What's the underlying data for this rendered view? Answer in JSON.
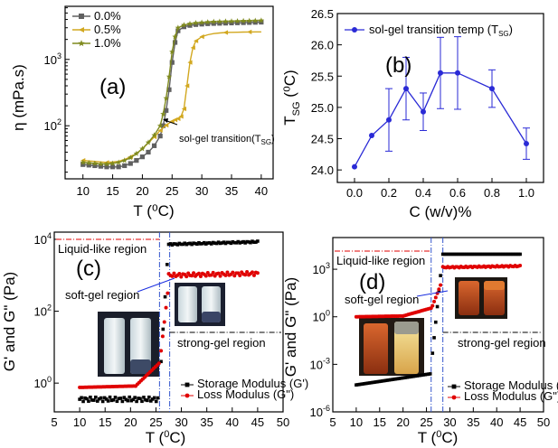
{
  "chart_data": [
    {
      "id": "a",
      "type": "line",
      "panel_label": "(a)",
      "xlabel": "T (⁰C)",
      "ylabel": "η (mPa.s)",
      "xlim": [
        7,
        42
      ],
      "ylim_log10": [
        1.2,
        3.8
      ],
      "yscale": "log",
      "x_ticks": [
        "10",
        "15",
        "20",
        "25",
        "30",
        "35",
        "40"
      ],
      "y_ticks": [
        {
          "base": "10",
          "exp": "2",
          "log": 2
        },
        {
          "base": "10",
          "exp": "3",
          "log": 3
        }
      ],
      "legend_placement": "top-left",
      "annotation": {
        "text": "sol-gel transition(T",
        "sub": "SG",
        "close": ")",
        "x": 28.8,
        "y": 93
      },
      "series": [
        {
          "name": "0.0%",
          "color": "#606060",
          "marker": "square",
          "x": [
            10,
            11,
            12,
            13,
            14,
            15,
            16,
            17,
            18,
            19,
            20,
            21,
            22,
            23,
            23.5,
            24,
            24.5,
            25,
            25.5,
            26,
            27,
            28,
            29,
            30,
            31,
            32,
            33,
            34,
            35,
            36,
            37,
            38,
            39,
            40
          ],
          "y": [
            26,
            25.5,
            25,
            24.5,
            24,
            24,
            24,
            25,
            27,
            30,
            34,
            40,
            50,
            70,
            100,
            170,
            350,
            900,
            1800,
            2700,
            3100,
            3250,
            3350,
            3400,
            3450,
            3480,
            3500,
            3520,
            3540,
            3560,
            3580,
            3600,
            3620,
            3640
          ]
        },
        {
          "name": "0.5%",
          "color": "#d2a820",
          "marker": "triangle-left",
          "x": [
            10,
            11,
            12,
            13,
            14,
            15,
            16,
            17,
            18,
            19,
            20,
            21,
            22,
            23,
            24,
            25,
            25.5,
            26,
            26.5,
            27,
            27.5,
            28,
            28.5,
            29,
            30,
            31,
            32,
            33,
            34,
            35,
            36,
            37,
            38,
            39,
            40
          ],
          "y": [
            30,
            29.5,
            29,
            28.5,
            28,
            28.5,
            29,
            31,
            34,
            38,
            45,
            55,
            68,
            85,
            102,
            117,
            123,
            128,
            138,
            180,
            400,
            900,
            1500,
            1900,
            2200,
            2350,
            2450,
            2500,
            2540,
            2560,
            2570,
            2580,
            2590,
            2595,
            2600
          ],
          "markers_every": 4
        },
        {
          "name": "1.0%",
          "color": "#7f8a1e",
          "marker": "star",
          "x": [
            10,
            11,
            12,
            13,
            14,
            15,
            16,
            17,
            18,
            19,
            20,
            21,
            22,
            23,
            23.5,
            24,
            24.5,
            25,
            25.5,
            26,
            27,
            28,
            29,
            30,
            31,
            32,
            33,
            34,
            35,
            36,
            37,
            38,
            39,
            40
          ],
          "y": [
            28,
            27.5,
            27,
            26.5,
            26.5,
            27,
            28,
            30,
            33,
            38,
            45,
            56,
            72,
            100,
            150,
            260,
            550,
            1300,
            2200,
            3000,
            3300,
            3450,
            3550,
            3600,
            3650,
            3700,
            3720,
            3740,
            3760,
            3780,
            3800,
            3820,
            3840,
            3860
          ]
        }
      ]
    },
    {
      "id": "b",
      "type": "line",
      "panel_label": "(b)",
      "xlabel": "C (w/v)%",
      "ylabel": "T (⁰C)",
      "ylabel_sub": "SG",
      "xlim": [
        -0.1,
        1.1
      ],
      "ylim": [
        23.8,
        26.5
      ],
      "x_ticks": [
        "0.0",
        "0.2",
        "0.4",
        "0.6",
        "0.8",
        "1.0"
      ],
      "y_ticks": [
        "24.0",
        "24.5",
        "25.0",
        "25.5",
        "26.0",
        "26.5"
      ],
      "legend_placement": "top",
      "series": [
        {
          "name": "sol-gel transition temp (T",
          "name_sub": "SG",
          "name_close": ")",
          "color": "#2a2ad6",
          "marker": "circle",
          "x": [
            0.0,
            0.1,
            0.2,
            0.3,
            0.4,
            0.5,
            0.6,
            0.8,
            1.0
          ],
          "y": [
            24.05,
            24.55,
            24.8,
            25.3,
            24.93,
            25.55,
            25.55,
            25.3,
            24.42
          ],
          "err": [
            0,
            0,
            0.5,
            0.5,
            0.3,
            0.57,
            0.58,
            0.3,
            0.25
          ]
        }
      ]
    },
    {
      "id": "c",
      "type": "scatter",
      "panel_label": "(c)",
      "xlabel": "T (⁰C)",
      "ylabel": "G' and G\" (Pa)",
      "xlim": [
        5,
        50
      ],
      "ylim_log10": [
        -0.8,
        4.2
      ],
      "yscale": "log",
      "x_ticks": [
        "5",
        "10",
        "15",
        "20",
        "25",
        "30",
        "35",
        "40",
        "45",
        "50"
      ],
      "y_ticks": [
        {
          "base": "10",
          "exp": "0",
          "log": 0
        },
        {
          "base": "10",
          "exp": "2",
          "log": 2
        },
        {
          "base": "10",
          "exp": "4",
          "log": 4
        }
      ],
      "vlines": [
        25.7,
        27.7
      ],
      "regions": {
        "liquid": "Liquid-like region",
        "soft": "soft-gel region",
        "strong": "strong-gel region"
      },
      "legend_placement": "bottom-right",
      "series": [
        {
          "name": "Storage Modulus (G')",
          "color": "#000000",
          "marker": "square",
          "segments": [
            {
              "x0": 10,
              "x1": 25.4,
              "log0": -0.45,
              "log1": -0.45,
              "jitter": 0.06
            },
            {
              "x0": 26,
              "x1": 27.2,
              "log0": 0.6,
              "log1": 3.3,
              "jitter": 0
            },
            {
              "x0": 27.5,
              "x1": 45,
              "log0": 3.86,
              "log1": 3.93,
              "jitter": 0.02
            }
          ]
        },
        {
          "name": "Loss Modulus (G\")",
          "color": "#e00000",
          "marker": "circle",
          "segments": [
            {
              "x0": 10,
              "x1": 21,
              "log0": -0.12,
              "log1": -0.08,
              "jitter": 0
            },
            {
              "x0": 21,
              "x1": 25.6,
              "log0": -0.08,
              "log1": 0.55,
              "jitter": 0
            },
            {
              "x0": 26,
              "x1": 27.3,
              "log0": 0.9,
              "log1": 2.5,
              "jitter": 0
            },
            {
              "x0": 27.5,
              "x1": 45,
              "log0": 3.0,
              "log1": 3.05,
              "jitter": 0.05
            }
          ]
        }
      ]
    },
    {
      "id": "d",
      "type": "scatter",
      "panel_label": "(d)",
      "xlabel": "T (⁰C)",
      "ylabel": "G' and G\" (Pa)",
      "xlim": [
        5,
        50
      ],
      "ylim_log10": [
        -6,
        5
      ],
      "yscale": "log",
      "x_ticks": [
        "5",
        "10",
        "15",
        "20",
        "25",
        "30",
        "35",
        "40",
        "45",
        "50"
      ],
      "y_ticks": [
        {
          "base": "10",
          "exp": "-6",
          "log": -6
        },
        {
          "base": "10",
          "exp": "-3",
          "log": -3
        },
        {
          "base": "10",
          "exp": "0",
          "log": 0
        },
        {
          "base": "10",
          "exp": "3",
          "log": 3
        }
      ],
      "vlines": [
        26.0,
        28.5
      ],
      "regions": {
        "liquid": "Liquid-like region",
        "soft": "soft-gel region",
        "strong": "strong-gel region"
      },
      "legend_placement": "bottom-right",
      "series": [
        {
          "name": "Storage Modulus (G')",
          "color": "#000000",
          "marker": "square",
          "segments": [
            {
              "x0": 10,
              "x1": 25.8,
              "log0": -4.3,
              "log1": -3.6,
              "jitter": 0
            },
            {
              "x0": 26.3,
              "x1": 28.0,
              "log0": -2.3,
              "log1": 2.6,
              "jitter": 0
            },
            {
              "x0": 28.5,
              "x1": 45,
              "log0": 3.95,
              "log1": 3.95,
              "jitter": 0
            }
          ]
        },
        {
          "name": "Loss Modulus (G\")",
          "color": "#e00000",
          "marker": "circle",
          "segments": [
            {
              "x0": 10,
              "x1": 20,
              "log0": 0.0,
              "log1": 0.05,
              "jitter": 0
            },
            {
              "x0": 20,
              "x1": 26.0,
              "log0": 0.05,
              "log1": 0.55,
              "jitter": 0
            },
            {
              "x0": 26.3,
              "x1": 28.0,
              "log0": 0.7,
              "log1": 2.0,
              "jitter": 0
            },
            {
              "x0": 28.5,
              "x1": 45,
              "log0": 3.12,
              "log1": 3.2,
              "jitter": 0.04
            }
          ]
        }
      ]
    }
  ]
}
